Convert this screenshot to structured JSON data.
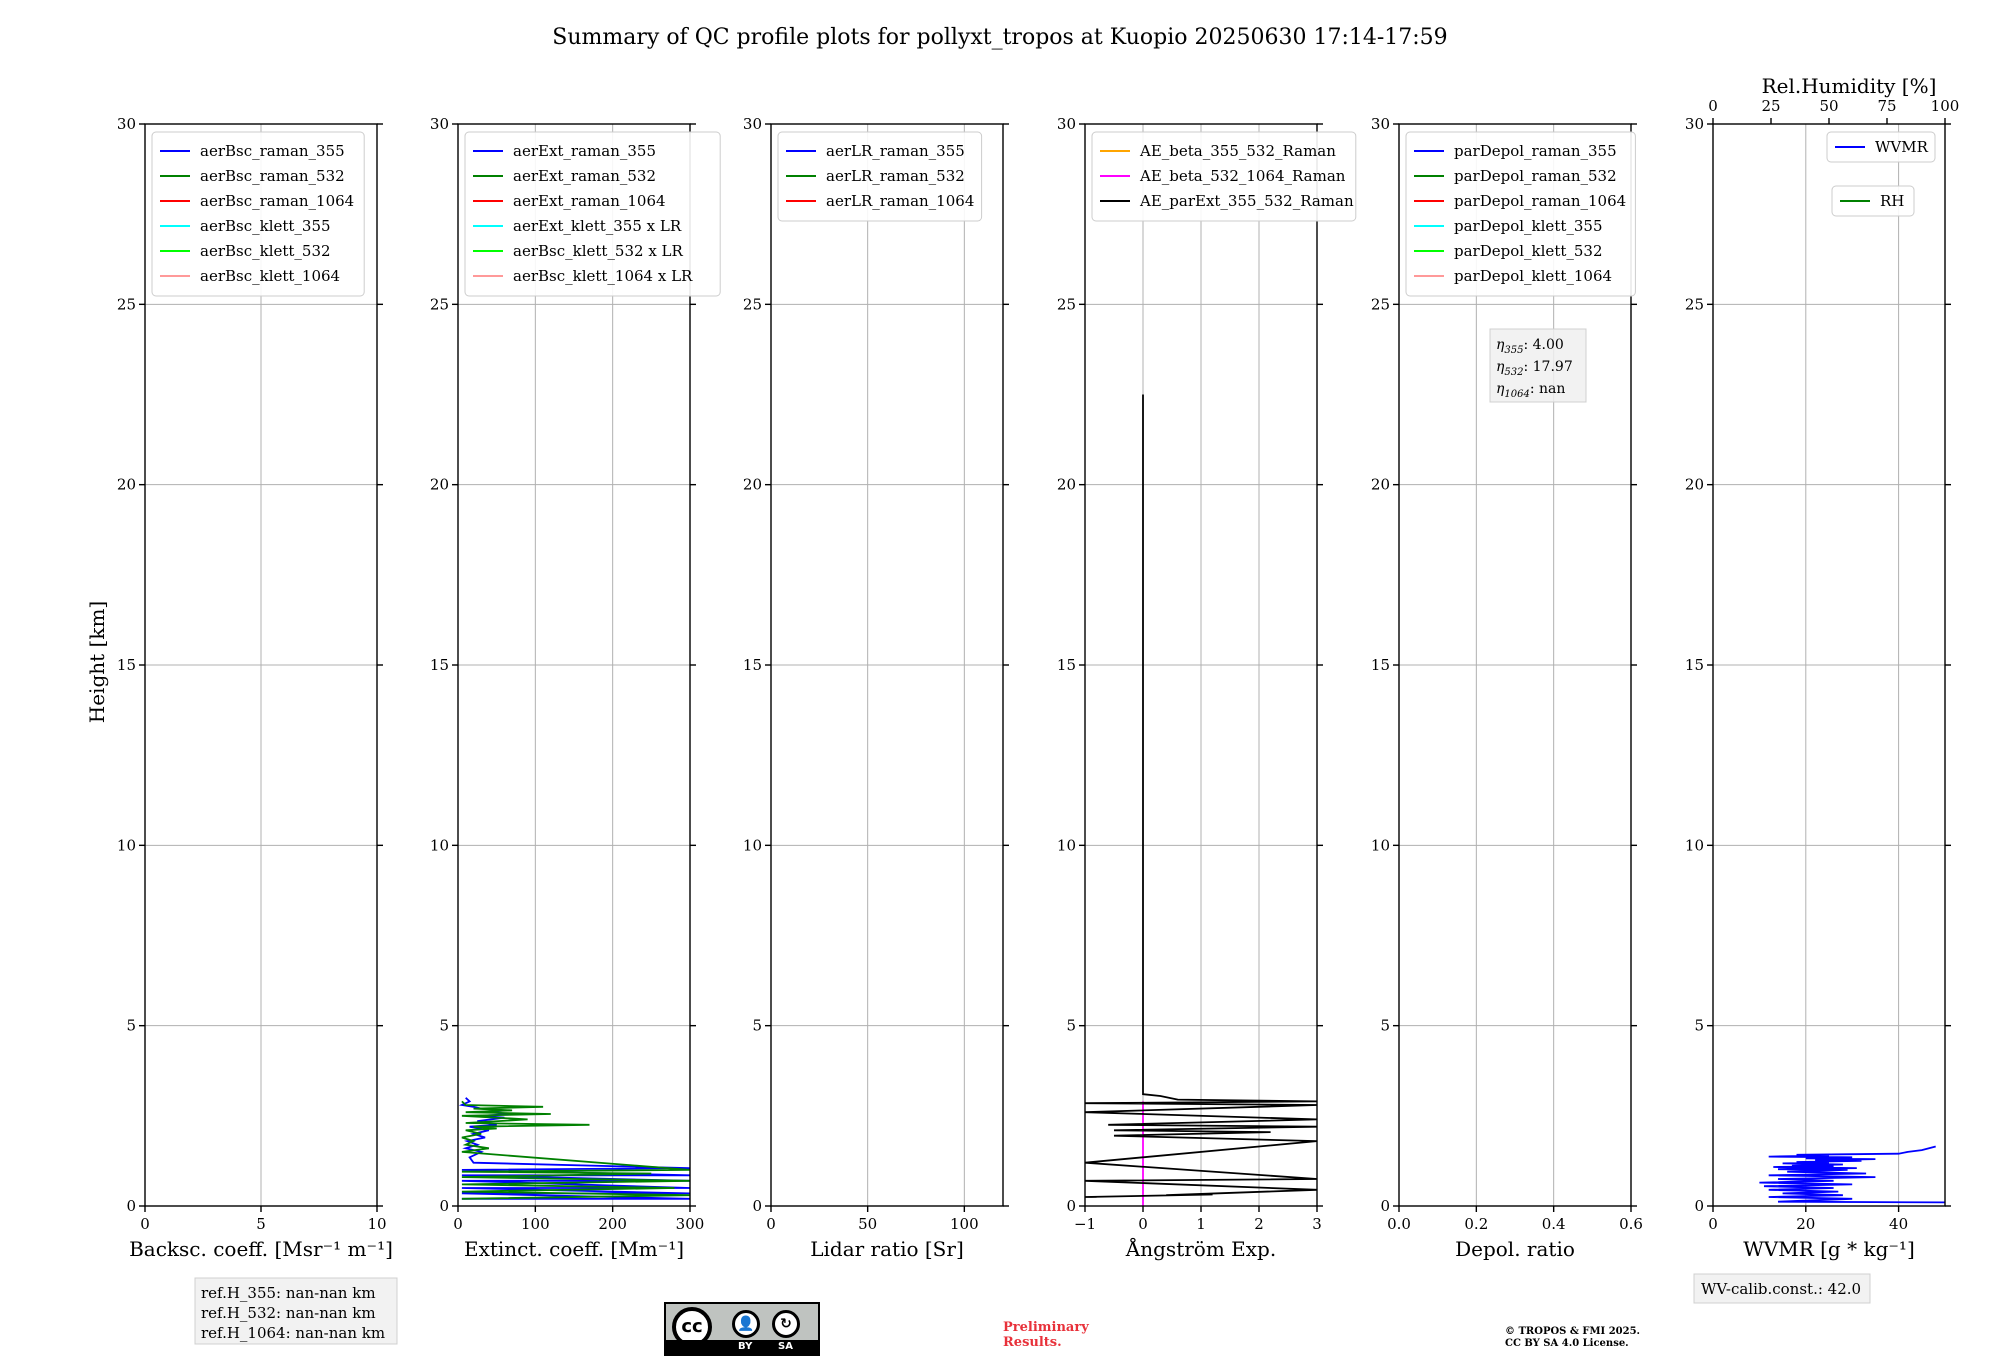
{
  "title": "Summary of QC profile plots for pollyxt_tropos at Kuopio 20250630 17:14-17:59",
  "ylabel": "Height [km]",
  "chart_data": [
    {
      "type": "line",
      "id": "bsc",
      "xlabel": "Backsc. coeff. [Msr⁻¹ m⁻¹]",
      "xlim": [
        0,
        10
      ],
      "ylim": [
        0,
        30
      ],
      "xticks": [
        "0",
        "5",
        "10"
      ],
      "xtick_values": [
        0,
        5,
        10
      ],
      "yticks": [
        "0",
        "5",
        "10",
        "15",
        "20",
        "25",
        "30"
      ],
      "legend": [
        {
          "label": "aerBsc_raman_355",
          "color": "#0000ff"
        },
        {
          "label": "aerBsc_raman_532",
          "color": "#008000"
        },
        {
          "label": "aerBsc_raman_1064",
          "color": "#ff0000"
        },
        {
          "label": "aerBsc_klett_355",
          "color": "#00ffff"
        },
        {
          "label": "aerBsc_klett_532",
          "color": "#00ff00"
        },
        {
          "label": "aerBsc_klett_1064",
          "color": "#ff9999"
        }
      ],
      "series": []
    },
    {
      "type": "line",
      "id": "ext",
      "xlabel": "Extinct. coeff. [Mm⁻¹]",
      "xlim": [
        0,
        300
      ],
      "ylim": [
        0,
        30
      ],
      "xticks": [
        "0",
        "100",
        "200",
        "300"
      ],
      "xtick_values": [
        0,
        100,
        200,
        300
      ],
      "yticks": [
        "0",
        "5",
        "10",
        "15",
        "20",
        "25",
        "30"
      ],
      "legend": [
        {
          "label": "aerExt_raman_355",
          "color": "#0000ff"
        },
        {
          "label": "aerExt_raman_532",
          "color": "#008000"
        },
        {
          "label": "aerExt_raman_1064",
          "color": "#ff0000"
        },
        {
          "label": "aerExt_klett_355 x LR",
          "color": "#00ffff"
        },
        {
          "label": "aerBsc_klett_532 x LR",
          "color": "#00ff00"
        },
        {
          "label": "aerBsc_klett_1064 x LR",
          "color": "#ff9999"
        }
      ],
      "series": [
        {
          "name": "aerExt_raman_355",
          "color": "#0000ff",
          "x": [
            5,
            300,
            5,
            300,
            5,
            300,
            5,
            300,
            5,
            300,
            5,
            300,
            20,
            15,
            30,
            10,
            25,
            12,
            35,
            20,
            40,
            15,
            50,
            25,
            60,
            30,
            70,
            40,
            60,
            30,
            20,
            5,
            15,
            10
          ],
          "y": [
            0.2,
            0.2,
            0.35,
            0.35,
            0.5,
            0.5,
            0.7,
            0.7,
            0.85,
            0.85,
            1.0,
            1.05,
            1.2,
            1.35,
            1.5,
            1.6,
            1.7,
            1.8,
            1.9,
            2.0,
            2.1,
            2.2,
            2.25,
            2.35,
            2.45,
            2.5,
            2.55,
            2.6,
            2.65,
            2.7,
            2.75,
            2.8,
            2.9,
            3.0
          ]
        },
        {
          "name": "aerExt_raman_532",
          "color": "#008000",
          "x": [
            5,
            300,
            5,
            280,
            5,
            300,
            5,
            250,
            5,
            300,
            5,
            40,
            10,
            20,
            5,
            30,
            10,
            50,
            20,
            170,
            10,
            90,
            5,
            120,
            10,
            70,
            20,
            110,
            10,
            5
          ],
          "y": [
            0.2,
            0.3,
            0.4,
            0.5,
            0.6,
            0.7,
            0.8,
            0.9,
            0.95,
            1.0,
            1.5,
            1.6,
            1.7,
            1.8,
            1.9,
            2.0,
            2.1,
            2.15,
            2.2,
            2.25,
            2.3,
            2.4,
            2.5,
            2.55,
            2.6,
            2.65,
            2.7,
            2.75,
            2.8,
            2.9
          ]
        }
      ]
    },
    {
      "type": "line",
      "id": "lr",
      "xlabel": "Lidar ratio [Sr]",
      "xlim": [
        0,
        120
      ],
      "ylim": [
        0,
        30
      ],
      "xticks": [
        "0",
        "50",
        "100"
      ],
      "xtick_values": [
        0,
        50,
        100
      ],
      "yticks": [
        "0",
        "5",
        "10",
        "15",
        "20",
        "25",
        "30"
      ],
      "legend": [
        {
          "label": "aerLR_raman_355",
          "color": "#0000ff"
        },
        {
          "label": "aerLR_raman_532",
          "color": "#008000"
        },
        {
          "label": "aerLR_raman_1064",
          "color": "#ff0000"
        }
      ],
      "series": []
    },
    {
      "type": "line",
      "id": "ae",
      "xlabel": "Ångström Exp.",
      "xlim": [
        -1,
        3
      ],
      "ylim": [
        0,
        30
      ],
      "xticks": [
        "−1",
        "0",
        "1",
        "2",
        "3"
      ],
      "xtick_values": [
        -1,
        0,
        1,
        2,
        3
      ],
      "yticks": [
        "0",
        "5",
        "10",
        "15",
        "20",
        "25",
        "30"
      ],
      "legend": [
        {
          "label": "AE_beta_355_532_Raman",
          "color": "#ffa500"
        },
        {
          "label": "AE_beta_532_1064_Raman",
          "color": "#ff00ff"
        },
        {
          "label": "AE_parExt_355_532_Raman",
          "color": "#000000"
        }
      ],
      "series": [
        {
          "name": "AE_beta_532_1064_Raman",
          "color": "#ff00ff",
          "x": [
            0,
            0
          ],
          "y": [
            0,
            2.9
          ]
        },
        {
          "name": "AE_parExt_355_532_Raman",
          "color": "#000000",
          "x": [
            0,
            0,
            0.3,
            0.6,
            3,
            -1,
            3,
            -1,
            3,
            -0.6,
            3,
            -0.5,
            2.2,
            -0.5,
            3,
            -1,
            3,
            -1,
            3,
            0.4,
            1.2,
            -1,
            -0.8
          ],
          "y": [
            22.5,
            3.1,
            3.05,
            2.95,
            2.9,
            2.85,
            2.8,
            2.6,
            2.4,
            2.25,
            2.2,
            2.1,
            2.05,
            1.95,
            1.8,
            1.2,
            0.75,
            0.7,
            0.45,
            0.3,
            0.32,
            0.25,
            0.25
          ]
        }
      ]
    },
    {
      "type": "line",
      "id": "depol",
      "xlabel": "Depol. ratio",
      "xlim": [
        0,
        0.6
      ],
      "ylim": [
        0,
        30
      ],
      "xticks": [
        "0.0",
        "0.2",
        "0.4",
        "0.6"
      ],
      "xtick_values": [
        0,
        0.2,
        0.4,
        0.6
      ],
      "yticks": [
        "0",
        "5",
        "10",
        "15",
        "20",
        "25",
        "30"
      ],
      "legend": [
        {
          "label": "parDepol_raman_355",
          "color": "#0000ff"
        },
        {
          "label": "parDepol_raman_532",
          "color": "#008000"
        },
        {
          "label": "parDepol_raman_1064",
          "color": "#ff0000"
        },
        {
          "label": "parDepol_klett_355",
          "color": "#00ffff"
        },
        {
          "label": "parDepol_klett_532",
          "color": "#00ff00"
        },
        {
          "label": "parDepol_klett_1064",
          "color": "#ff9999"
        }
      ],
      "series": []
    },
    {
      "type": "line",
      "id": "wv",
      "xlabel": "WVMR [g * kg⁻¹]",
      "top_xlabel": "Rel.Humidity [%]",
      "top_xticks": [
        "0",
        "25",
        "50",
        "75",
        "100"
      ],
      "top_xtick_values": [
        0,
        25,
        50,
        75,
        100
      ],
      "xlim": [
        0,
        50
      ],
      "ylim": [
        0,
        30
      ],
      "xticks": [
        "0",
        "20",
        "40"
      ],
      "xtick_values": [
        0,
        20,
        40
      ],
      "yticks": [
        "0",
        "5",
        "10",
        "15",
        "20",
        "25",
        "30"
      ],
      "legend": [
        {
          "label": "WVMR",
          "color": "#0000ff"
        },
        {
          "label": "RH",
          "color": "#008000"
        }
      ],
      "series": [
        {
          "name": "WVMR",
          "color": "#0000ff",
          "x": [
            50,
            14,
            30,
            12,
            28,
            15,
            27,
            12,
            26,
            11,
            30,
            10,
            26,
            14,
            35,
            12,
            33,
            16,
            29,
            14,
            31,
            13,
            26,
            17,
            28,
            15,
            25,
            18,
            32,
            22,
            35,
            20,
            30,
            12,
            25,
            18,
            40,
            42,
            45,
            48
          ],
          "y": [
            0.1,
            0.12,
            0.2,
            0.25,
            0.3,
            0.35,
            0.4,
            0.45,
            0.5,
            0.55,
            0.6,
            0.65,
            0.7,
            0.75,
            0.8,
            0.85,
            0.9,
            0.95,
            1.0,
            1.02,
            1.05,
            1.08,
            1.1,
            1.12,
            1.15,
            1.18,
            1.2,
            1.22,
            1.25,
            1.27,
            1.3,
            1.32,
            1.35,
            1.37,
            1.4,
            1.42,
            1.45,
            1.5,
            1.55,
            1.65
          ]
        }
      ]
    }
  ],
  "annotations": {
    "eta_title": "",
    "eta": [
      {
        "sym": "η",
        "sub": "355",
        "val": ": 4.00"
      },
      {
        "sym": "η",
        "sub": "532",
        "val": ": 17.97"
      },
      {
        "sym": "η",
        "sub": "1064",
        "val": ": nan"
      }
    ],
    "ref": [
      "ref.H_355: nan-nan km",
      "ref.H_532: nan-nan km",
      "ref.H_1064: nan-nan km"
    ],
    "wv_calib": "WV-calib.const.: 42.0",
    "preliminary": "Preliminary\nResults.",
    "copyright": "© TROPOS & FMI 2025.\nCC BY SA 4.0 License.",
    "cc_badge": {
      "cc": "cc",
      "by": "BY",
      "sa": "SA"
    }
  }
}
